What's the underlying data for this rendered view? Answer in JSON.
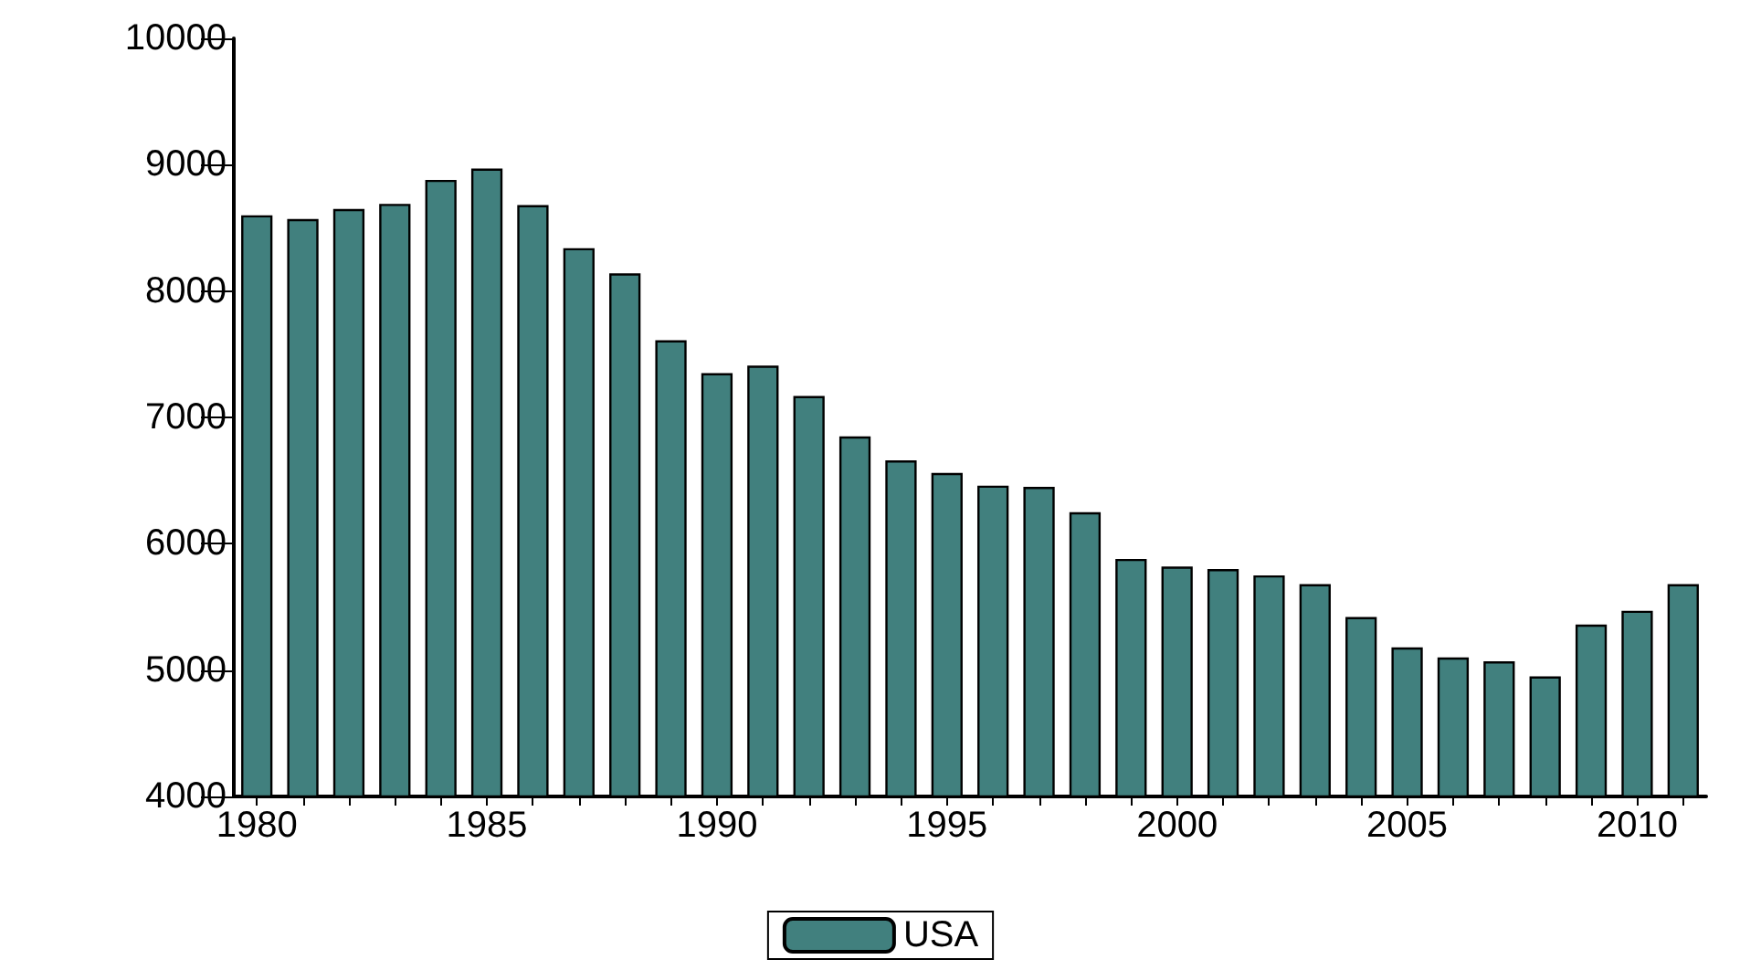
{
  "chart_data": {
    "type": "bar",
    "categories": [
      "1980",
      null,
      null,
      null,
      null,
      "1985",
      null,
      null,
      null,
      null,
      "1990",
      null,
      null,
      null,
      null,
      "1995",
      null,
      null,
      null,
      null,
      "2000",
      null,
      null,
      null,
      null,
      "2005",
      null,
      null,
      null,
      null,
      "2010",
      null
    ],
    "series": [
      {
        "name": "USA",
        "color": "#41807e",
        "values": [
          8600,
          8570,
          8650,
          8690,
          8880,
          8970,
          8680,
          8340,
          8140,
          7610,
          7350,
          7410,
          7170,
          6850,
          6660,
          6560,
          6460,
          6450,
          6250,
          5880,
          5820,
          5800,
          5750,
          5680,
          5420,
          5180,
          5100,
          5070,
          4950,
          5360,
          5470,
          5680
        ]
      }
    ],
    "ylim": [
      4000,
      10000
    ],
    "yticks": [
      4000,
      5000,
      6000,
      7000,
      8000,
      9000,
      10000
    ],
    "grid": false,
    "legend": "bottom"
  }
}
